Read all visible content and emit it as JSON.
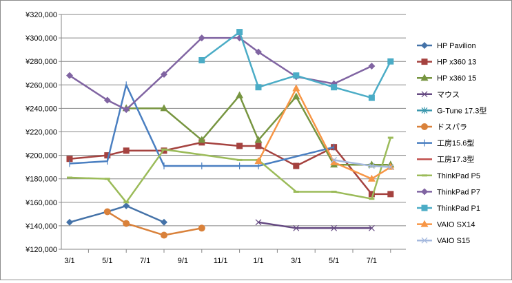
{
  "chart_data": {
    "type": "line",
    "title": "",
    "xlabel": "",
    "ylabel": "",
    "ylim": [
      120000,
      320000
    ],
    "ystep": 20000,
    "y_tick_labels": [
      "¥120,000",
      "¥140,000",
      "¥160,000",
      "¥180,000",
      "¥200,000",
      "¥220,000",
      "¥240,000",
      "¥260,000",
      "¥280,000",
      "¥300,000",
      "¥320,000"
    ],
    "x_slots": 18,
    "x_tick_labels": [
      {
        "slot": 0,
        "label": "3/1"
      },
      {
        "slot": 2,
        "label": "5/1"
      },
      {
        "slot": 4,
        "label": "7/1"
      },
      {
        "slot": 6,
        "label": "9/1"
      },
      {
        "slot": 8,
        "label": "11/1"
      },
      {
        "slot": 10,
        "label": "1/1"
      },
      {
        "slot": 12,
        "label": "3/1"
      },
      {
        "slot": 14,
        "label": "5/1"
      },
      {
        "slot": 16,
        "label": "7/1"
      }
    ],
    "grid": true,
    "legend_position": "right",
    "series": [
      {
        "name": "HP Pavilion",
        "color": "#4472a8",
        "marker": "diamond",
        "points": [
          [
            0,
            143000
          ],
          [
            2,
            152000
          ],
          [
            3,
            157000
          ],
          [
            5,
            143000
          ]
        ]
      },
      {
        "name": "HP x360 13",
        "color": "#a5423f",
        "marker": "square",
        "points": [
          [
            0,
            197000
          ],
          [
            2,
            200000
          ],
          [
            3,
            204000
          ],
          [
            5,
            204000
          ],
          [
            7,
            211000
          ],
          [
            9,
            208000
          ],
          [
            10,
            208000
          ],
          [
            12,
            191000
          ],
          [
            14,
            207000
          ],
          [
            16,
            167000
          ],
          [
            17,
            167000
          ]
        ]
      },
      {
        "name": "HP x360 15",
        "color": "#779540",
        "marker": "triangle",
        "points": [
          [
            3,
            240000
          ],
          [
            5,
            240000
          ],
          [
            7,
            213000
          ],
          [
            9,
            251000
          ],
          [
            10,
            213000
          ],
          [
            12,
            250000
          ],
          [
            14,
            192000
          ],
          [
            16,
            192000
          ],
          [
            17,
            192000
          ]
        ]
      },
      {
        "name": "マウス",
        "color": "#654a82",
        "marker": "x",
        "points": [
          [
            10,
            143000
          ],
          [
            12,
            138000
          ],
          [
            14,
            138000
          ],
          [
            16,
            138000
          ]
        ]
      },
      {
        "name": "G-Tune 17.3型",
        "color": "#3a97ad",
        "marker": "star",
        "points": []
      },
      {
        "name": "ドスパラ",
        "color": "#d9813a",
        "marker": "circle",
        "points": [
          [
            2,
            152000
          ],
          [
            3,
            142000
          ],
          [
            5,
            132000
          ],
          [
            7,
            138000
          ]
        ]
      },
      {
        "name": "工房15.6型",
        "color": "#4a7fc1",
        "marker": "plus",
        "points": [
          [
            0,
            193000
          ],
          [
            2,
            195000
          ],
          [
            3,
            260000
          ],
          [
            5,
            191000
          ],
          [
            7,
            191000
          ],
          [
            9,
            191000
          ],
          [
            10,
            191000
          ],
          [
            14,
            207000
          ]
        ]
      },
      {
        "name": "工房17.3型",
        "color": "#c0504d",
        "marker": "none",
        "points": []
      },
      {
        "name": "ThinkPad P5",
        "color": "#9bbb59",
        "marker": "dash",
        "points": [
          [
            0,
            181000
          ],
          [
            2,
            180000
          ],
          [
            3,
            160000
          ],
          [
            5,
            205000
          ],
          [
            9,
            196000
          ],
          [
            10,
            196000
          ],
          [
            12,
            169000
          ],
          [
            14,
            169000
          ],
          [
            16,
            163000
          ],
          [
            17,
            215000
          ]
        ]
      },
      {
        "name": "ThinkPad P7",
        "color": "#8064a2",
        "marker": "diamond",
        "points": [
          [
            0,
            268000
          ],
          [
            2,
            247000
          ],
          [
            3,
            239000
          ],
          [
            5,
            269000
          ],
          [
            7,
            300000
          ],
          [
            9,
            300000
          ],
          [
            10,
            288000
          ],
          [
            12,
            267000
          ],
          [
            14,
            261000
          ],
          [
            16,
            276000
          ]
        ]
      },
      {
        "name": "ThinkPad P1",
        "color": "#4bacc6",
        "marker": "square",
        "points": [
          [
            7,
            281000
          ],
          [
            9,
            305000
          ],
          [
            10,
            258000
          ],
          [
            12,
            268000
          ],
          [
            14,
            258000
          ],
          [
            16,
            249000
          ],
          [
            17,
            280000
          ]
        ]
      },
      {
        "name": "VAIO SX14",
        "color": "#f79646",
        "marker": "triangle",
        "points": [
          [
            10,
            195000
          ],
          [
            12,
            257000
          ],
          [
            14,
            194000
          ],
          [
            16,
            180000
          ],
          [
            17,
            190000
          ]
        ]
      },
      {
        "name": "VAIO S15",
        "color": "#a5b9de",
        "marker": "x",
        "points": [
          [
            14,
            196000
          ],
          [
            16,
            191000
          ],
          [
            17,
            190000
          ]
        ]
      }
    ]
  }
}
